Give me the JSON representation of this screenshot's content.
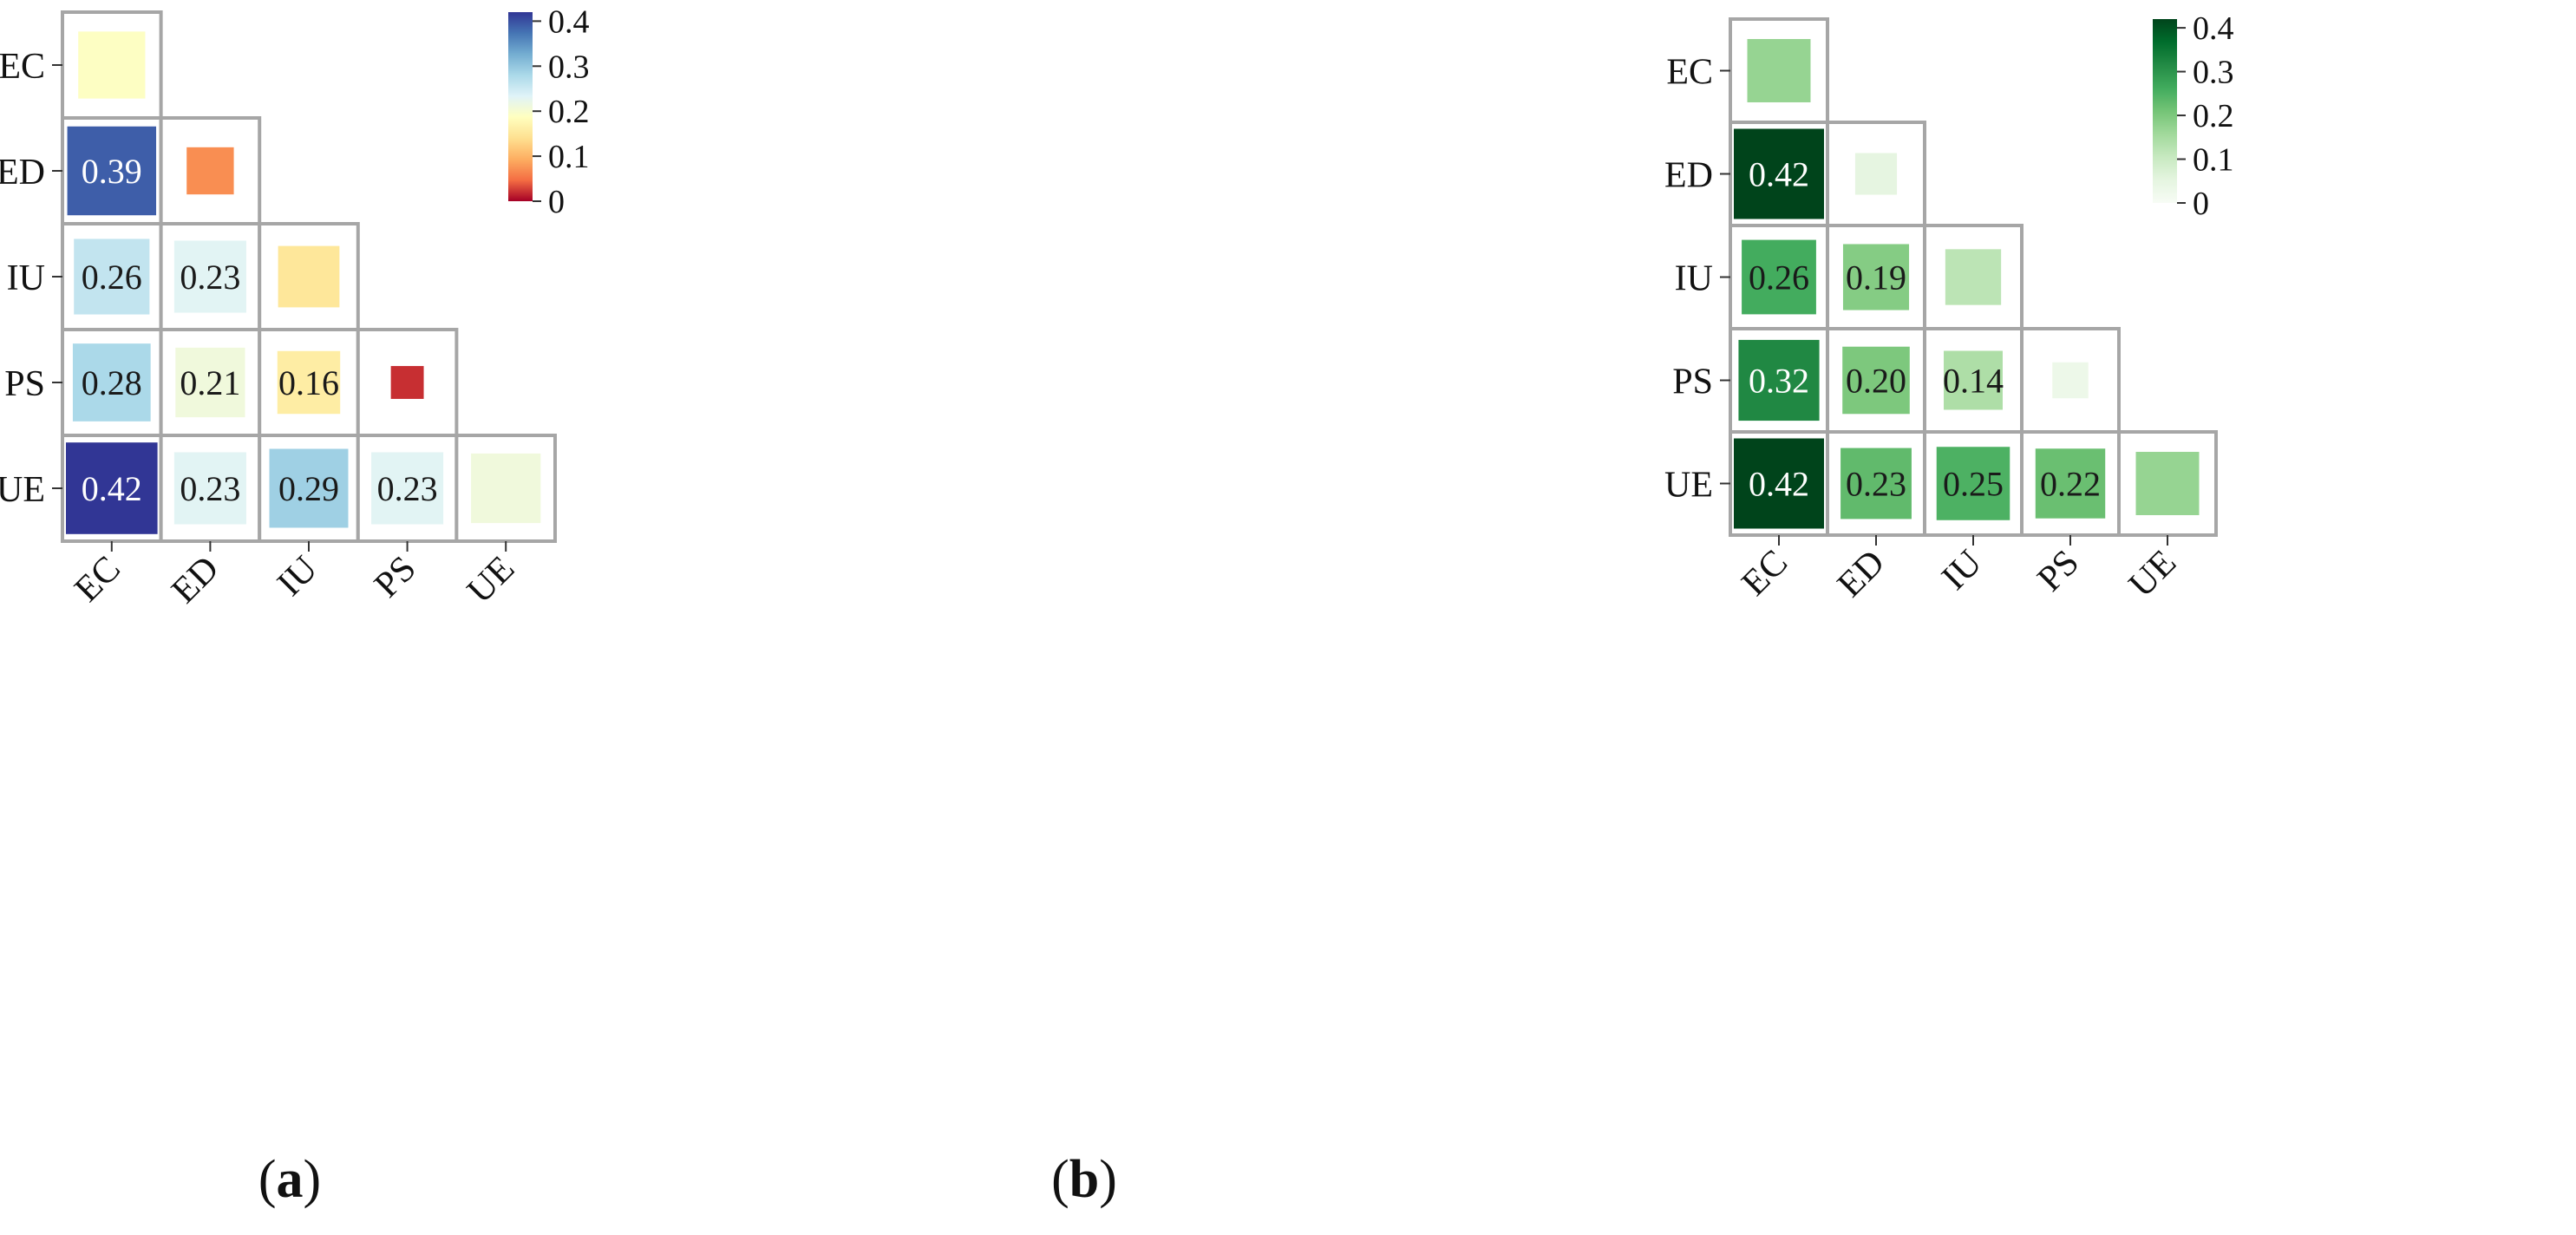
{
  "chart_data": [
    {
      "type": "heatmap",
      "subtype": "lower-triangular correlation matrix",
      "panel_label": "a",
      "rows": [
        "EC",
        "ED",
        "IU",
        "PS",
        "UE"
      ],
      "columns": [
        "EC",
        "ED",
        "IU",
        "PS",
        "UE"
      ],
      "cells": [
        {
          "row": "EC",
          "col": "EC",
          "value": 0.19,
          "label": ""
        },
        {
          "row": "ED",
          "col": "EC",
          "value": 0.39,
          "label": "0.39"
        },
        {
          "row": "ED",
          "col": "ED",
          "value": 0.07,
          "label": ""
        },
        {
          "row": "IU",
          "col": "EC",
          "value": 0.26,
          "label": "0.26"
        },
        {
          "row": "IU",
          "col": "ED",
          "value": 0.23,
          "label": "0.23"
        },
        {
          "row": "IU",
          "col": "IU",
          "value": 0.15,
          "label": ""
        },
        {
          "row": "PS",
          "col": "EC",
          "value": 0.28,
          "label": "0.28"
        },
        {
          "row": "PS",
          "col": "ED",
          "value": 0.21,
          "label": "0.21"
        },
        {
          "row": "PS",
          "col": "IU",
          "value": 0.16,
          "label": "0.16"
        },
        {
          "row": "PS",
          "col": "PS",
          "value": 0.02,
          "label": ""
        },
        {
          "row": "UE",
          "col": "EC",
          "value": 0.42,
          "label": "0.42"
        },
        {
          "row": "UE",
          "col": "ED",
          "value": 0.23,
          "label": "0.23"
        },
        {
          "row": "UE",
          "col": "IU",
          "value": 0.29,
          "label": "0.29"
        },
        {
          "row": "UE",
          "col": "PS",
          "value": 0.23,
          "label": "0.23"
        },
        {
          "row": "UE",
          "col": "UE",
          "value": 0.21,
          "label": ""
        }
      ],
      "colorbar": {
        "vmin": 0,
        "vmax": 0.42,
        "ticks": [
          0,
          0.1,
          0.2,
          0.3,
          0.4
        ],
        "tick_labels": [
          "0",
          "0.1",
          "0.2",
          "0.3",
          "0.4"
        ],
        "colormap": "RdYlBu",
        "stops": [
          "#a50026",
          "#f46d43",
          "#fdae61",
          "#fee090",
          "#ffffbf",
          "#e0f3f8",
          "#abd9e9",
          "#74add1",
          "#4575b4",
          "#313695"
        ]
      },
      "marker_size_encodes": "absolute value",
      "grid": true
    },
    {
      "type": "heatmap",
      "subtype": "lower-triangular correlation matrix",
      "panel_label": "b",
      "rows": [
        "EC",
        "ED",
        "IU",
        "PS",
        "UE"
      ],
      "columns": [
        "EC",
        "ED",
        "IU",
        "PS",
        "UE"
      ],
      "cells": [
        {
          "row": "EC",
          "col": "EC",
          "value": 0.17,
          "label": ""
        },
        {
          "row": "ED",
          "col": "EC",
          "value": 0.42,
          "label": "0.42"
        },
        {
          "row": "ED",
          "col": "ED",
          "value": 0.05,
          "label": ""
        },
        {
          "row": "IU",
          "col": "EC",
          "value": 0.26,
          "label": "0.26"
        },
        {
          "row": "IU",
          "col": "ED",
          "value": 0.19,
          "label": "0.19"
        },
        {
          "row": "IU",
          "col": "IU",
          "value": 0.12,
          "label": ""
        },
        {
          "row": "PS",
          "col": "EC",
          "value": 0.32,
          "label": "0.32"
        },
        {
          "row": "PS",
          "col": "ED",
          "value": 0.2,
          "label": "0.20"
        },
        {
          "row": "PS",
          "col": "IU",
          "value": 0.14,
          "label": "0.14"
        },
        {
          "row": "PS",
          "col": "PS",
          "value": 0.03,
          "label": ""
        },
        {
          "row": "UE",
          "col": "EC",
          "value": 0.42,
          "label": "0.42"
        },
        {
          "row": "UE",
          "col": "ED",
          "value": 0.23,
          "label": "0.23"
        },
        {
          "row": "UE",
          "col": "IU",
          "value": 0.25,
          "label": "0.25"
        },
        {
          "row": "UE",
          "col": "PS",
          "value": 0.22,
          "label": "0.22"
        },
        {
          "row": "UE",
          "col": "UE",
          "value": 0.17,
          "label": ""
        }
      ],
      "colorbar": {
        "vmin": 0,
        "vmax": 0.42,
        "ticks": [
          0,
          0.1,
          0.2,
          0.3,
          0.4
        ],
        "tick_labels": [
          "0",
          "0.1",
          "0.2",
          "0.3",
          "0.4"
        ],
        "colormap": "Greens",
        "stops": [
          "#f7fcf5",
          "#e5f5e0",
          "#c7e9c0",
          "#a1d99b",
          "#74c476",
          "#41ab5d",
          "#238b45",
          "#006d2c",
          "#00441b"
        ]
      },
      "marker_size_encodes": "absolute value",
      "grid": true
    }
  ]
}
